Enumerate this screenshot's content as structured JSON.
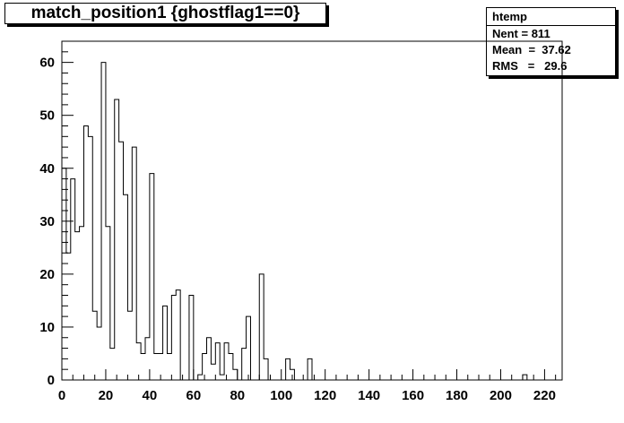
{
  "chart_data": {
    "type": "bar",
    "title": "match_position1 {ghostflag1==0}",
    "stats": {
      "name": "htemp",
      "entries": "Nent = 811",
      "mean": "Mean  =  37.62",
      "rms": "RMS   =   29.6"
    },
    "bin_width": 2,
    "x_start": 0,
    "xlim": [
      0,
      228
    ],
    "ylim": [
      0,
      64
    ],
    "x_ticks": [
      0,
      20,
      40,
      60,
      80,
      100,
      120,
      140,
      160,
      180,
      200,
      220
    ],
    "y_ticks": [
      0,
      10,
      20,
      30,
      40,
      50,
      60
    ],
    "values": [
      40,
      24,
      38,
      28,
      29,
      48,
      46,
      13,
      10,
      60,
      29,
      6,
      53,
      45,
      35,
      13,
      44,
      7,
      5,
      8,
      39,
      5,
      5,
      14,
      5,
      16,
      17,
      0,
      0,
      16,
      0,
      1,
      5,
      8,
      3,
      7,
      1,
      7,
      5,
      2,
      0,
      6,
      12,
      0,
      0,
      20,
      4,
      0,
      0,
      0,
      0,
      4,
      2,
      0,
      0,
      0,
      4,
      0,
      0,
      0,
      0,
      0,
      0,
      0,
      0,
      0,
      0,
      0,
      0,
      0,
      0,
      0,
      0,
      0,
      0,
      0,
      0,
      0,
      0,
      0,
      0,
      0,
      0,
      0,
      0,
      0,
      0,
      0,
      0,
      0,
      0,
      0,
      0,
      0,
      0,
      0,
      0,
      0,
      0,
      0,
      0,
      0,
      0,
      0,
      0,
      1,
      0,
      0,
      0,
      0,
      0,
      0,
      0,
      0
    ],
    "colors": {
      "line": "#000000",
      "frame": "#000000",
      "background": "#ffffff"
    }
  }
}
